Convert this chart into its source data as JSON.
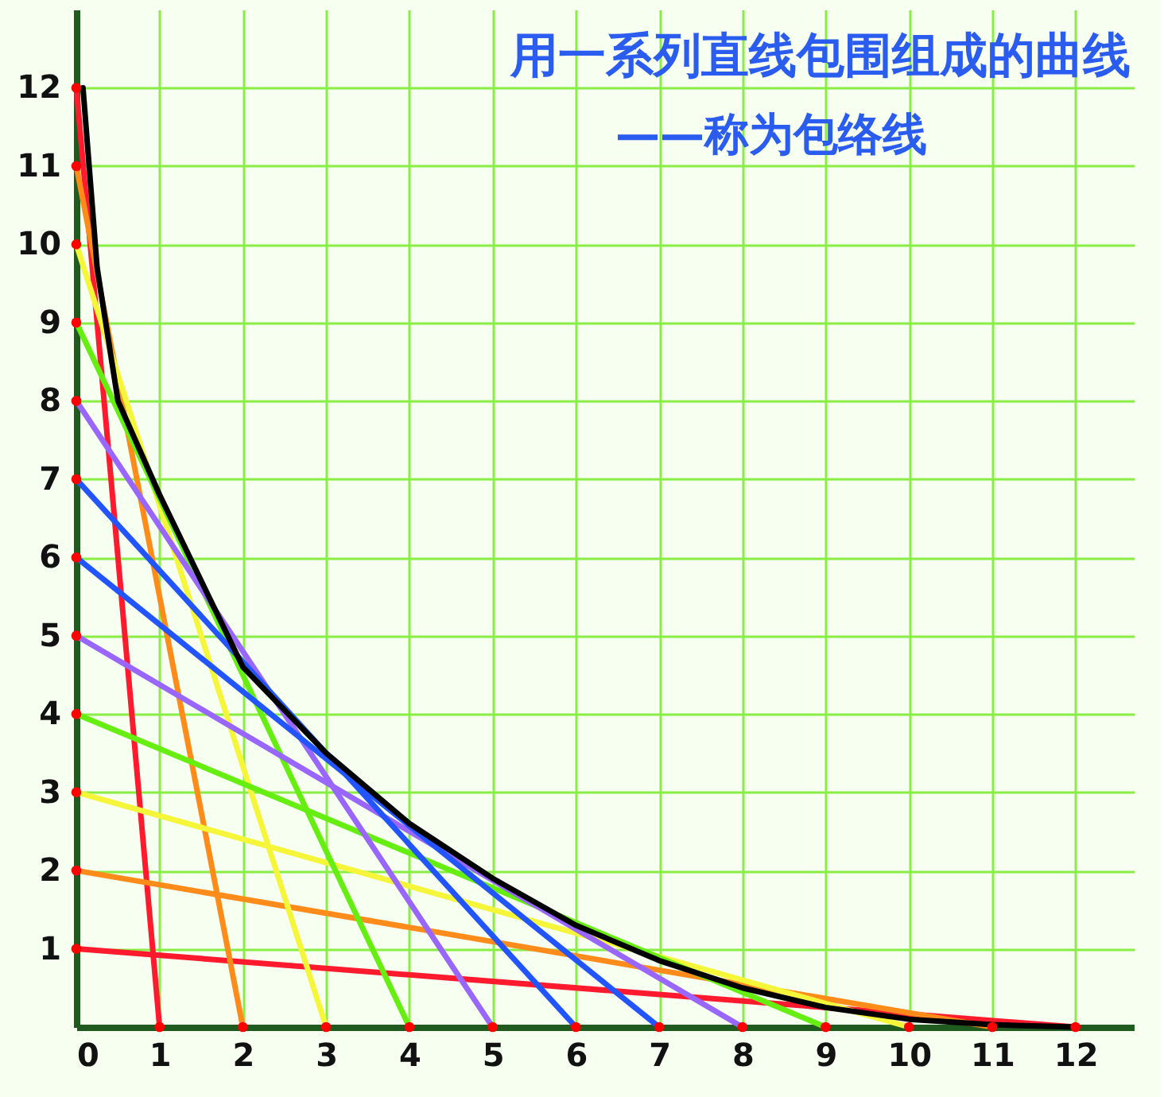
{
  "chart_data": {
    "type": "line",
    "annotations": [
      "用一系列直线包围组成的曲线",
      "——称为包络线"
    ],
    "xlim": [
      0,
      12.7
    ],
    "ylim": [
      0,
      13
    ],
    "xticks": [
      0,
      1,
      2,
      3,
      4,
      5,
      6,
      7,
      8,
      9,
      10,
      11,
      12
    ],
    "yticks": [
      1,
      2,
      3,
      4,
      5,
      6,
      7,
      8,
      9,
      10,
      11,
      12
    ],
    "grid": true,
    "line_style": "solid",
    "series": [
      {
        "color": "#ff1a2e",
        "x": [
          0,
          1
        ],
        "values": [
          12,
          0
        ]
      },
      {
        "color": "#ff1a2e",
        "x": [
          0,
          12
        ],
        "values": [
          1,
          0
        ]
      },
      {
        "color": "#ff8c1a",
        "x": [
          0,
          2
        ],
        "values": [
          11,
          0
        ]
      },
      {
        "color": "#ff8c1a",
        "x": [
          0,
          11
        ],
        "values": [
          2,
          0
        ]
      },
      {
        "color": "#f5f53a",
        "x": [
          0,
          3
        ],
        "values": [
          10,
          0
        ]
      },
      {
        "color": "#f5f53a",
        "x": [
          0,
          10
        ],
        "values": [
          3,
          0
        ]
      },
      {
        "color": "#66ee11",
        "x": [
          0,
          4
        ],
        "values": [
          9,
          0
        ]
      },
      {
        "color": "#66ee11",
        "x": [
          0,
          9
        ],
        "values": [
          4,
          0
        ]
      },
      {
        "color": "#9966ff",
        "x": [
          0,
          5
        ],
        "values": [
          8,
          0
        ]
      },
      {
        "color": "#9966ff",
        "x": [
          0,
          8
        ],
        "values": [
          5,
          0
        ]
      },
      {
        "color": "#2255ff",
        "x": [
          0,
          6
        ],
        "values": [
          7,
          0
        ]
      },
      {
        "color": "#2255ff",
        "x": [
          0,
          7
        ],
        "values": [
          6,
          0
        ]
      },
      {
        "color": "#000000",
        "x": [
          0.08,
          0.25,
          0.5,
          1,
          1.5,
          2,
          3,
          4,
          5,
          6,
          7,
          8,
          9,
          10,
          11,
          12
        ],
        "values": [
          12,
          9.7,
          8,
          6.8,
          5.7,
          4.6,
          3.5,
          2.6,
          1.9,
          1.3,
          0.85,
          0.5,
          0.25,
          0.1,
          0.03,
          0.0
        ]
      },
      {
        "type": "scatter",
        "marker": "circle",
        "color": "#ff0000",
        "x": [
          0,
          0,
          0,
          0,
          0,
          0,
          0,
          0,
          0,
          0,
          0,
          0,
          1,
          2,
          3,
          4,
          5,
          6,
          7,
          8,
          9,
          10,
          11,
          12
        ],
        "values": [
          1,
          2,
          3,
          4,
          5,
          6,
          7,
          8,
          9,
          10,
          11,
          12,
          0,
          0,
          0,
          0,
          0,
          0,
          0,
          0,
          0,
          0,
          0,
          0
        ]
      }
    ]
  }
}
